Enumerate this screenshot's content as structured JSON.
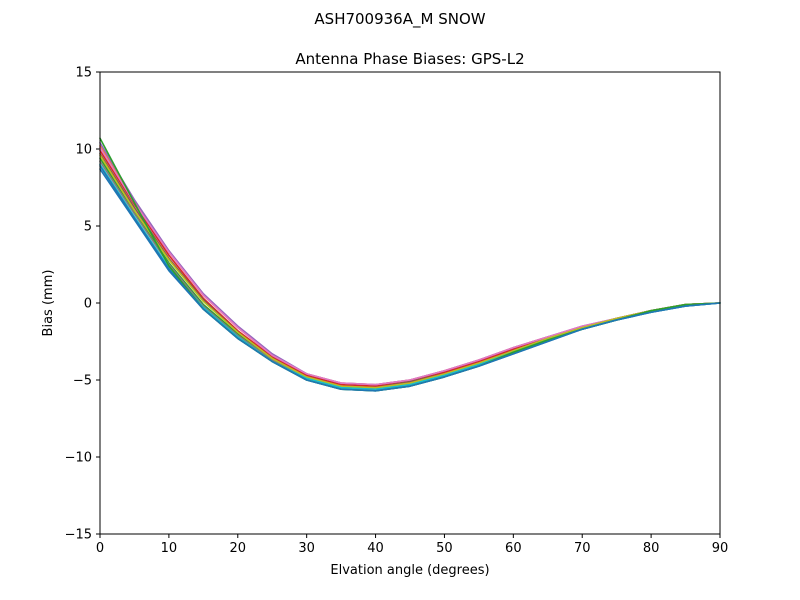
{
  "figure": {
    "suptitle": "ASH700936A_M    SNOW"
  },
  "chart_data": {
    "type": "line",
    "title": "Antenna Phase Biases: GPS-L2",
    "xlabel": "Elvation angle (degrees)",
    "ylabel": "Bias (mm)",
    "xlim": [
      0,
      90
    ],
    "ylim": [
      -15,
      15
    ],
    "xticks": [
      0,
      10,
      20,
      30,
      40,
      50,
      60,
      70,
      80,
      90
    ],
    "yticks": [
      -15,
      -10,
      -5,
      0,
      5,
      10,
      15
    ],
    "xtick_labels": [
      "0",
      "10",
      "20",
      "30",
      "40",
      "50",
      "60",
      "70",
      "80",
      "90"
    ],
    "ytick_labels": [
      "−15",
      "−10",
      "−5",
      "0",
      "5",
      "10",
      "15"
    ],
    "grid": false,
    "legend": "none",
    "x": [
      0,
      5,
      10,
      15,
      20,
      25,
      30,
      35,
      40,
      45,
      50,
      55,
      60,
      65,
      70,
      75,
      80,
      85,
      90
    ],
    "series": [
      {
        "color": "#1f77b4",
        "values": [
          8.7,
          5.4,
          2.1,
          -0.4,
          -2.3,
          -3.8,
          -5.0,
          -5.6,
          -5.7,
          -5.4,
          -4.8,
          -4.1,
          -3.3,
          -2.5,
          -1.7,
          -1.1,
          -0.6,
          -0.2,
          0.0
        ]
      },
      {
        "color": "#ff7f0e",
        "values": [
          10.2,
          6.6,
          3.3,
          0.5,
          -1.6,
          -3.4,
          -4.6,
          -5.2,
          -5.3,
          -5.0,
          -4.4,
          -3.7,
          -2.9,
          -2.2,
          -1.6,
          -1.0,
          -0.5,
          -0.1,
          0.0
        ]
      },
      {
        "color": "#2ca02c",
        "values": [
          9.4,
          5.9,
          2.6,
          -0.1,
          -2.0,
          -3.6,
          -4.8,
          -5.4,
          -5.5,
          -5.2,
          -4.6,
          -3.9,
          -3.1,
          -2.3,
          -1.6,
          -1.0,
          -0.5,
          -0.1,
          0.0
        ]
      },
      {
        "color": "#d62728",
        "values": [
          9.9,
          6.4,
          3.1,
          0.3,
          -1.8,
          -3.5,
          -4.7,
          -5.3,
          -5.4,
          -5.1,
          -4.5,
          -3.8,
          -3.0,
          -2.3,
          -1.6,
          -1.0,
          -0.5,
          -0.1,
          0.0
        ]
      },
      {
        "color": "#9467bd",
        "values": [
          10.4,
          6.7,
          3.4,
          0.6,
          -1.5,
          -3.3,
          -4.6,
          -5.2,
          -5.3,
          -5.0,
          -4.4,
          -3.7,
          -2.9,
          -2.2,
          -1.5,
          -1.0,
          -0.5,
          -0.1,
          0.0
        ]
      },
      {
        "color": "#8c564b",
        "values": [
          9.7,
          6.2,
          2.9,
          0.2,
          -1.9,
          -3.6,
          -4.8,
          -5.4,
          -5.5,
          -5.1,
          -4.6,
          -3.9,
          -3.1,
          -2.3,
          -1.6,
          -1.0,
          -0.5,
          -0.1,
          0.0
        ]
      },
      {
        "color": "#e377c2",
        "values": [
          10.1,
          6.5,
          3.3,
          0.5,
          -1.6,
          -3.4,
          -4.6,
          -5.2,
          -5.3,
          -5.0,
          -4.4,
          -3.7,
          -2.9,
          -2.2,
          -1.5,
          -1.0,
          -0.5,
          -0.1,
          0.0
        ]
      },
      {
        "color": "#7f7f7f",
        "values": [
          9.2,
          5.8,
          2.5,
          -0.2,
          -2.1,
          -3.7,
          -4.9,
          -5.5,
          -5.6,
          -5.3,
          -4.7,
          -4.0,
          -3.2,
          -2.4,
          -1.7,
          -1.1,
          -0.6,
          -0.2,
          0.0
        ]
      },
      {
        "color": "#bcbd22",
        "values": [
          9.6,
          6.0,
          2.8,
          0.1,
          -1.9,
          -3.6,
          -4.8,
          -5.4,
          -5.5,
          -5.2,
          -4.6,
          -3.9,
          -3.1,
          -2.3,
          -1.6,
          -1.0,
          -0.5,
          -0.1,
          0.0
        ]
      },
      {
        "color": "#17becf",
        "values": [
          9.0,
          5.6,
          2.3,
          -0.3,
          -2.2,
          -3.8,
          -4.9,
          -5.5,
          -5.6,
          -5.3,
          -4.7,
          -4.0,
          -3.2,
          -2.4,
          -1.7,
          -1.1,
          -0.6,
          -0.2,
          0.0
        ]
      },
      {
        "color": "#2ca02c",
        "values": [
          10.7,
          6.5,
          2.4,
          -0.4,
          -2.3,
          -3.8,
          -5.0,
          -5.6,
          -5.7,
          -5.4,
          -4.8,
          -4.1,
          -3.2,
          -2.4,
          -1.7,
          -1.1,
          -0.5,
          -0.1,
          0.0
        ]
      },
      {
        "color": "#1f77b4",
        "values": [
          8.9,
          5.5,
          2.2,
          -0.4,
          -2.3,
          -3.8,
          -5.0,
          -5.6,
          -5.7,
          -5.4,
          -4.8,
          -4.1,
          -3.3,
          -2.5,
          -1.7,
          -1.1,
          -0.6,
          -0.2,
          0.0
        ]
      }
    ]
  }
}
